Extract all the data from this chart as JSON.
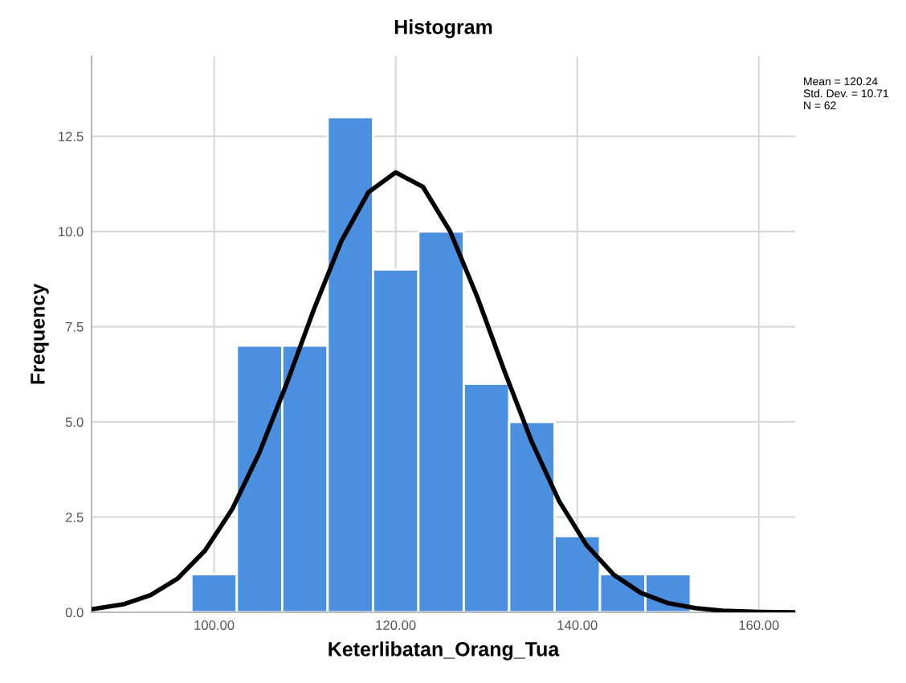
{
  "chart_data": {
    "type": "histogram",
    "title": "Histogram",
    "xlabel": "Keterlibatan_Orang_Tua",
    "ylabel": "Frequency",
    "series": [
      {
        "type": "histogram",
        "color": "#4a8fe0",
        "bins": [
          97.5,
          102.5,
          107.5,
          112.5,
          117.5,
          122.5,
          127.5,
          132.5,
          137.5,
          142.5,
          147.5,
          152.5
        ],
        "values": [
          1,
          7,
          7,
          13,
          9,
          10,
          6,
          5,
          2,
          1,
          1
        ]
      },
      {
        "type": "line",
        "color": "#000000",
        "x": [
          86.5,
          90,
          93,
          96,
          99,
          102,
          105,
          108,
          111,
          114,
          117,
          120,
          123,
          126,
          129,
          132,
          135,
          138,
          141,
          144,
          147,
          150,
          153,
          156,
          160,
          164
        ],
        "values": [
          0.08,
          0.21,
          0.45,
          0.89,
          1.62,
          2.71,
          4.2,
          6.01,
          7.96,
          9.74,
          11.03,
          11.55,
          11.17,
          10.0,
          8.27,
          6.32,
          4.47,
          2.92,
          1.77,
          0.99,
          0.51,
          0.24,
          0.11,
          0.04,
          0.01,
          0.0
        ]
      }
    ],
    "xlim": [
      86.5,
      164
    ],
    "ylim": [
      0,
      14.6
    ],
    "xticks": [
      {
        "value": 100,
        "label": "100.00"
      },
      {
        "value": 120,
        "label": "120.00"
      },
      {
        "value": 140,
        "label": "140.00"
      },
      {
        "value": 160,
        "label": "160.00"
      }
    ],
    "yticks": [
      {
        "value": 0,
        "label": "0.0"
      },
      {
        "value": 2.5,
        "label": "2.5"
      },
      {
        "value": 5,
        "label": "5.0"
      },
      {
        "value": 7.5,
        "label": "7.5"
      },
      {
        "value": 10,
        "label": "10.0"
      },
      {
        "value": 12.5,
        "label": "12.5"
      }
    ],
    "grid": true,
    "legend": false,
    "annotations": [
      "Mean = 120.24\nStd. Dev. = 10.71\nN = 62"
    ]
  }
}
